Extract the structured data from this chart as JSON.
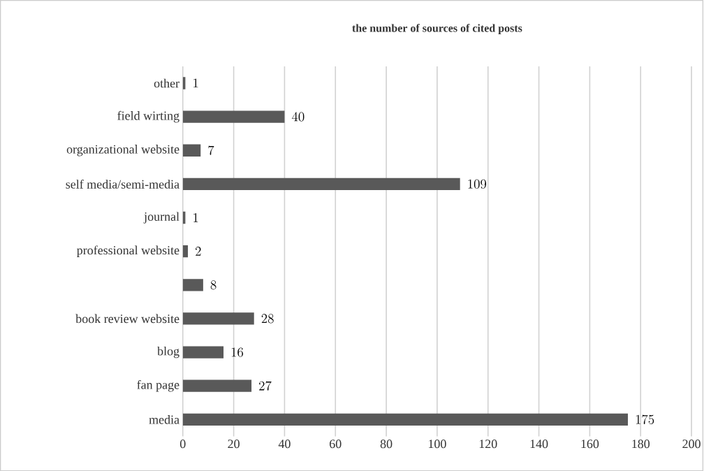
{
  "chart_data": {
    "type": "bar",
    "orientation": "horizontal",
    "title": "the number  of sources of cited posts",
    "categories": [
      "other",
      "field wirting",
      "organizational website",
      "self media/semi-media",
      "journal",
      "professional website",
      null,
      "book review website",
      "blog",
      "fan page",
      "media"
    ],
    "values": [
      1,
      40,
      7,
      109,
      1,
      2,
      8,
      28,
      16,
      27,
      175
    ],
    "color": "#595959",
    "xlim": [
      0,
      200
    ],
    "xticks": [
      0,
      20,
      40,
      60,
      80,
      100,
      120,
      140,
      160,
      180,
      200
    ],
    "grid": "x",
    "data_labels": true
  }
}
